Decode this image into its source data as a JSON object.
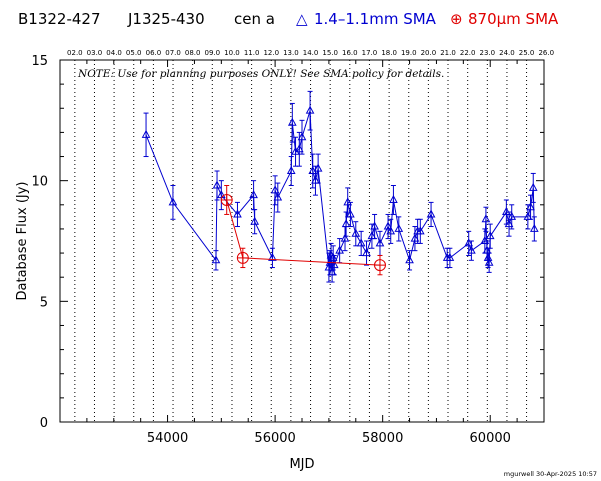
{
  "header": {
    "source_name": "B1322-427",
    "alt_name": "J1325-430",
    "common_name": "cen a",
    "legend_blue_symbol": "△",
    "legend_blue_label": "1.4–1.1mm SMA",
    "legend_red_symbol": "⊕",
    "legend_red_label": "870μm SMA"
  },
  "note": "NOTE: Use for planning purposes ONLY!  See SMA policy for details.",
  "credit": "mgurwell 30-Apr-2025 10:57",
  "colors": {
    "blue_series": "#0000d0",
    "red_series": "#e00000",
    "axis": "#000000",
    "background": "#ffffff"
  },
  "chart_data": {
    "type": "scatter",
    "xlabel": "MJD",
    "ylabel": "Database Flux (Jy)",
    "xlim": [
      52000,
      61000
    ],
    "ylim": [
      0,
      15
    ],
    "x_ticks": [
      54000,
      56000,
      58000,
      60000
    ],
    "x_tick_labels": [
      "54000",
      "56000",
      "58000",
      "60000"
    ],
    "y_ticks": [
      0,
      5,
      10,
      15
    ],
    "y_tick_labels": [
      "0",
      "5",
      "10",
      "15"
    ],
    "top_axis": {
      "labels": [
        "02.0",
        "03.0",
        "04.0",
        "05.0",
        "06.0",
        "07.0",
        "08.0",
        "09.0",
        "10.0",
        "11.0",
        "12.0",
        "13.0",
        "14.0",
        "15.0",
        "16.0",
        "17.0",
        "18.0",
        "19.0",
        "20.0",
        "21.0",
        "22.0",
        "23.0",
        "24.0",
        "25.0",
        "26.0"
      ],
      "mjd_positions": [
        52276,
        52641,
        53006,
        53371,
        53737,
        54102,
        54467,
        54832,
        55198,
        55563,
        55928,
        56293,
        56659,
        57024,
        57389,
        57754,
        58120,
        58485,
        58850,
        59215,
        59581,
        59946,
        60311,
        60676,
        61042
      ]
    },
    "vertical_dotted_lines_mjd": [
      52276,
      52641,
      53006,
      53371,
      53737,
      54102,
      54467,
      54832,
      55198,
      55563,
      55928,
      56293,
      56659,
      57024,
      57389,
      57754,
      58120,
      58485,
      58850,
      59215,
      59581,
      59946,
      60311,
      60676
    ],
    "series": [
      {
        "name": "1.4–1.1mm SMA",
        "marker": "triangle",
        "x": [
          53600,
          54100,
          54900,
          54920,
          55000,
          55300,
          55600,
          55620,
          55950,
          56000,
          56050,
          56300,
          56320,
          56380,
          56450,
          56500,
          56650,
          56700,
          56750,
          56800,
          57000,
          57020,
          57040,
          57060,
          57080,
          57100,
          57200,
          57300,
          57320,
          57350,
          57400,
          57500,
          57600,
          57700,
          57800,
          57850,
          57950,
          58100,
          58150,
          58200,
          58300,
          58500,
          58600,
          58650,
          58700,
          58900,
          59200,
          59250,
          59600,
          59650,
          59900,
          59920,
          59940,
          59960,
          59980,
          60000,
          60300,
          60350,
          60400,
          60700,
          60750,
          60800,
          60820
        ],
        "y": [
          11.9,
          9.1,
          6.7,
          9.8,
          9.4,
          8.6,
          9.4,
          8.3,
          6.8,
          9.6,
          9.3,
          10.4,
          12.4,
          11.2,
          11.3,
          11.8,
          12.9,
          10.4,
          10.0,
          10.5,
          6.4,
          6.6,
          6.9,
          6.2,
          6.8,
          6.5,
          7.1,
          7.6,
          8.2,
          9.1,
          8.6,
          7.8,
          7.4,
          7.0,
          7.7,
          8.1,
          7.4,
          8.1,
          7.9,
          9.2,
          8.0,
          6.7,
          7.6,
          7.9,
          7.9,
          8.6,
          6.8,
          6.8,
          7.4,
          7.1,
          7.5,
          8.4,
          7.1,
          6.8,
          6.6,
          7.7,
          8.7,
          8.2,
          8.5,
          8.5,
          8.9,
          9.7,
          8.0
        ],
        "err": [
          0.9,
          0.7,
          0.4,
          0.6,
          0.6,
          0.5,
          0.6,
          0.5,
          0.4,
          0.6,
          0.6,
          0.6,
          0.8,
          0.6,
          0.7,
          0.7,
          0.8,
          0.7,
          0.6,
          0.6,
          0.6,
          0.5,
          0.5,
          0.4,
          0.5,
          0.4,
          0.5,
          0.5,
          0.5,
          0.6,
          0.5,
          0.5,
          0.5,
          0.5,
          0.5,
          0.5,
          0.5,
          0.5,
          0.5,
          0.6,
          0.5,
          0.4,
          0.5,
          0.5,
          0.5,
          0.5,
          0.4,
          0.4,
          0.5,
          0.4,
          0.5,
          0.5,
          0.4,
          0.4,
          0.4,
          0.5,
          0.5,
          0.5,
          0.5,
          0.5,
          0.5,
          0.6,
          0.5
        ]
      },
      {
        "name": "870μm SMA",
        "marker": "circle-plus",
        "x": [
          55100,
          55400,
          57950
        ],
        "y": [
          9.2,
          6.8,
          6.5
        ],
        "err": [
          0.6,
          0.4,
          0.4
        ]
      }
    ]
  }
}
